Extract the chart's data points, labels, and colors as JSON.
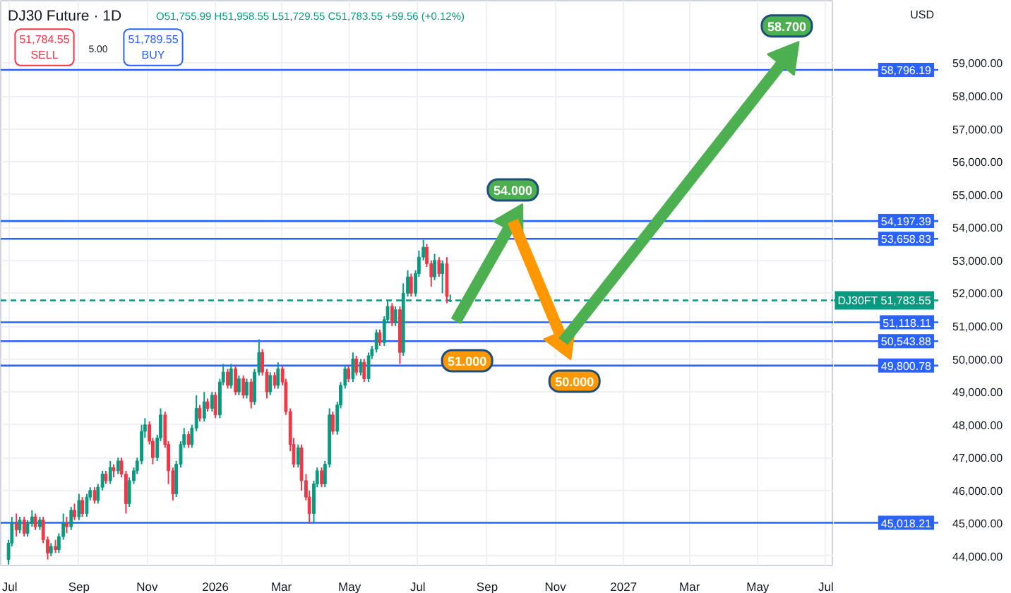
{
  "chart_data": {
    "type": "candlestick",
    "title": "DJ30 Future · 1D",
    "ylabel": "USD",
    "x": [
      "2025-06-30",
      "2025-07-03",
      "2025-07-07",
      "2025-07-10",
      "2025-07-14",
      "2025-07-17",
      "2025-07-21",
      "2025-07-24",
      "2025-07-28",
      "2025-07-31",
      "2025-08-04",
      "2025-08-07",
      "2025-08-11",
      "2025-08-14",
      "2025-08-18",
      "2025-08-21",
      "2025-08-25",
      "2025-08-28",
      "2025-09-01",
      "2025-09-04",
      "2025-09-08",
      "2025-09-11",
      "2025-09-15",
      "2025-09-18",
      "2025-09-22",
      "2025-09-25",
      "2025-09-29",
      "2025-10-02",
      "2025-10-06",
      "2025-10-09",
      "2025-10-13",
      "2025-10-16",
      "2025-10-20",
      "2025-10-23",
      "2025-10-27",
      "2025-10-30",
      "2025-11-03",
      "2025-11-06",
      "2025-11-10",
      "2025-11-13",
      "2025-11-17",
      "2025-11-20",
      "2025-11-24",
      "2025-11-27",
      "2025-12-01",
      "2025-12-04",
      "2025-12-08",
      "2025-12-11",
      "2025-12-15",
      "2025-12-18",
      "2025-12-22",
      "2025-12-25",
      "2025-12-29",
      "2026-01-01",
      "2026-01-05",
      "2026-01-08",
      "2026-01-12",
      "2026-01-15",
      "2026-01-19",
      "2026-01-22",
      "2026-01-26",
      "2026-01-29",
      "2026-02-02",
      "2026-02-05",
      "2026-02-09",
      "2026-02-12",
      "2026-02-16",
      "2026-02-19",
      "2026-02-23",
      "2026-02-26",
      "2026-03-02",
      "2026-03-05",
      "2026-03-09",
      "2026-03-12",
      "2026-03-16",
      "2026-03-19",
      "2026-03-23",
      "2026-03-26",
      "2026-03-30",
      "2026-04-02",
      "2026-04-06",
      "2026-04-09",
      "2026-04-13",
      "2026-04-16",
      "2026-04-20",
      "2026-04-23",
      "2026-04-27",
      "2026-04-30",
      "2026-05-04",
      "2026-05-07",
      "2026-05-11",
      "2026-05-14",
      "2026-05-18",
      "2026-05-21",
      "2026-05-25",
      "2026-05-28",
      "2026-06-01",
      "2026-06-04",
      "2026-06-08",
      "2026-06-11",
      "2026-06-15",
      "2026-06-18",
      "2026-06-22",
      "2026-06-25",
      "2026-06-29",
      "2026-07-02",
      "2026-07-06",
      "2026-07-09",
      "2026-07-13",
      "2026-07-16",
      "2026-07-20",
      "2026-07-23",
      "2026-07-27",
      "2026-07-30"
    ],
    "ohlc": [
      [
        43900,
        44500,
        43750,
        44400
      ],
      [
        44400,
        45200,
        44300,
        45000
      ],
      [
        45000,
        45300,
        44600,
        44800
      ],
      [
        44800,
        45200,
        44700,
        45100
      ],
      [
        45100,
        45200,
        44600,
        44700
      ],
      [
        44700,
        45100,
        44600,
        45000
      ],
      [
        45000,
        45400,
        44900,
        45200
      ],
      [
        45200,
        45300,
        44800,
        44900
      ],
      [
        44900,
        45200,
        44800,
        45100
      ],
      [
        45100,
        45200,
        44400,
        44500
      ],
      [
        44500,
        44600,
        43900,
        44100
      ],
      [
        44100,
        44400,
        44000,
        44300
      ],
      [
        44300,
        44500,
        44100,
        44200
      ],
      [
        44200,
        44700,
        44100,
        44600
      ],
      [
        44600,
        45300,
        44500,
        45000
      ],
      [
        45000,
        45200,
        44700,
        44900
      ],
      [
        44900,
        45500,
        44800,
        45400
      ],
      [
        45400,
        45600,
        45100,
        45200
      ],
      [
        45200,
        45900,
        45100,
        45700
      ],
      [
        45700,
        45800,
        45200,
        45300
      ],
      [
        45300,
        45900,
        45200,
        45800
      ],
      [
        45800,
        46100,
        45700,
        46000
      ],
      [
        46000,
        46100,
        45600,
        45700
      ],
      [
        45700,
        46200,
        45600,
        46100
      ],
      [
        46100,
        46600,
        46000,
        46500
      ],
      [
        46500,
        46600,
        46200,
        46300
      ],
      [
        46300,
        46900,
        46200,
        46700
      ],
      [
        46700,
        46800,
        46400,
        46600
      ],
      [
        46600,
        47000,
        46500,
        46900
      ],
      [
        46900,
        47000,
        46400,
        46500
      ],
      [
        46500,
        46600,
        45300,
        45600
      ],
      [
        45600,
        46400,
        45500,
        46300
      ],
      [
        46300,
        46700,
        46200,
        46600
      ],
      [
        46600,
        47000,
        46500,
        46900
      ],
      [
        46900,
        48000,
        46800,
        47800
      ],
      [
        47800,
        48200,
        47600,
        48000
      ],
      [
        48000,
        48100,
        47400,
        47500
      ],
      [
        47500,
        47600,
        46800,
        47000
      ],
      [
        47000,
        47700,
        46900,
        47600
      ],
      [
        47600,
        48500,
        47500,
        48300
      ],
      [
        48300,
        48400,
        47300,
        47400
      ],
      [
        47400,
        47500,
        46200,
        46600
      ],
      [
        46600,
        46700,
        45700,
        45900
      ],
      [
        45900,
        46900,
        45800,
        46800
      ],
      [
        46800,
        47500,
        46700,
        47400
      ],
      [
        47400,
        47900,
        47300,
        47700
      ],
      [
        47700,
        47800,
        47300,
        47400
      ],
      [
        47400,
        48000,
        47300,
        47900
      ],
      [
        47900,
        48900,
        47800,
        48500
      ],
      [
        48500,
        48600,
        48100,
        48200
      ],
      [
        48200,
        49000,
        48100,
        48700
      ],
      [
        48700,
        48800,
        48400,
        48500
      ],
      [
        48500,
        49000,
        48400,
        48900
      ],
      [
        48900,
        49000,
        48200,
        48300
      ],
      [
        48300,
        49400,
        48200,
        49300
      ],
      [
        49300,
        49850,
        49200,
        49600
      ],
      [
        49600,
        49700,
        49100,
        49200
      ],
      [
        49200,
        49850,
        49100,
        49700
      ],
      [
        49700,
        49800,
        48900,
        49000
      ],
      [
        49000,
        49500,
        48900,
        49400
      ],
      [
        49400,
        49500,
        48800,
        48900
      ],
      [
        48900,
        49400,
        48800,
        49300
      ],
      [
        49300,
        49400,
        48500,
        48700
      ],
      [
        48700,
        49700,
        48600,
        49600
      ],
      [
        49600,
        50600,
        49500,
        50200
      ],
      [
        50200,
        50300,
        49500,
        49600
      ],
      [
        49600,
        49700,
        48800,
        49000
      ],
      [
        49000,
        49600,
        48900,
        49500
      ],
      [
        49500,
        49600,
        49100,
        49200
      ],
      [
        49200,
        49900,
        49100,
        49700
      ],
      [
        49700,
        49800,
        49200,
        49300
      ],
      [
        49300,
        49400,
        48300,
        48400
      ],
      [
        48400,
        48500,
        47200,
        47400
      ],
      [
        47400,
        47600,
        46700,
        46800
      ],
      [
        46800,
        47400,
        46700,
        47300
      ],
      [
        47300,
        47400,
        46000,
        46300
      ],
      [
        46300,
        46500,
        45700,
        45800
      ],
      [
        45800,
        46000,
        45000,
        45300
      ],
      [
        45300,
        46300,
        45050,
        46200
      ],
      [
        46200,
        46700,
        46100,
        46600
      ],
      [
        46600,
        46700,
        46100,
        46200
      ],
      [
        46200,
        46900,
        46100,
        46800
      ],
      [
        46800,
        48500,
        46700,
        48300
      ],
      [
        48300,
        48400,
        47700,
        47800
      ],
      [
        47800,
        48700,
        47700,
        48600
      ],
      [
        48600,
        49300,
        48500,
        49200
      ],
      [
        49200,
        49800,
        49100,
        49700
      ],
      [
        49700,
        49800,
        49300,
        49400
      ],
      [
        49400,
        50200,
        49300,
        50000
      ],
      [
        50000,
        50100,
        49500,
        49600
      ],
      [
        49600,
        50000,
        49500,
        49900
      ],
      [
        49900,
        50000,
        49300,
        49400
      ],
      [
        49400,
        50200,
        49300,
        50100
      ],
      [
        50100,
        50400,
        50000,
        50300
      ],
      [
        50300,
        50900,
        50200,
        50800
      ],
      [
        50800,
        50900,
        50400,
        50500
      ],
      [
        50500,
        51300,
        50400,
        51200
      ],
      [
        51200,
        51800,
        51100,
        51600
      ],
      [
        51600,
        51700,
        51000,
        51100
      ],
      [
        51100,
        51600,
        51000,
        51500
      ],
      [
        51500,
        51600,
        49850,
        50200
      ],
      [
        50200,
        52300,
        50100,
        52000
      ],
      [
        52000,
        52700,
        51900,
        52500
      ],
      [
        52500,
        52600,
        51900,
        52000
      ],
      [
        52000,
        52700,
        51900,
        52600
      ],
      [
        52600,
        53300,
        52500,
        53100
      ],
      [
        53100,
        53620,
        53000,
        53400
      ],
      [
        53400,
        53500,
        52800,
        52900
      ],
      [
        52900,
        53000,
        52200,
        52500
      ],
      [
        52500,
        53200,
        52400,
        53000
      ],
      [
        53000,
        53100,
        52500,
        52600
      ],
      [
        52600,
        53000,
        52000,
        52900
      ],
      [
        52900,
        53100,
        51700,
        51900
      ],
      [
        51755.99,
        51958.55,
        51729.55,
        51783.55
      ]
    ],
    "series": [
      {
        "type": "line",
        "x": [
          "2026-08-04",
          "2026-09-24"
        ],
        "values": [
          51150,
          54200
        ],
        "color": "#4caf50",
        "marker": "triangle"
      },
      {
        "type": "line",
        "x": [
          "2026-09-24",
          "2026-11-08"
        ],
        "values": [
          54200,
          50530
        ],
        "color": "#ff9800",
        "marker": "triangle"
      },
      {
        "type": "line",
        "x": [
          "2026-11-08",
          "2027-05-27"
        ],
        "values": [
          50530,
          59190
        ],
        "color": "#4caf50",
        "marker": "triangle"
      }
    ],
    "xlim": [
      "2025-06-23",
      "2027-07-08"
    ],
    "xticks": [
      {
        "value": "2025-07-01",
        "label": "Jul"
      },
      {
        "value": "2025-09-01",
        "label": "Sep"
      },
      {
        "value": "2025-11-01",
        "label": "Nov"
      },
      {
        "value": "2026-01-01",
        "label": "2026"
      },
      {
        "value": "2026-03-01",
        "label": "Mar"
      },
      {
        "value": "2026-05-01",
        "label": "May"
      },
      {
        "value": "2026-07-01",
        "label": "Jul"
      },
      {
        "value": "2026-09-01",
        "label": "Sep"
      },
      {
        "value": "2026-11-01",
        "label": "Nov"
      },
      {
        "value": "2027-01-01",
        "label": "2027"
      },
      {
        "value": "2027-03-01",
        "label": "Mar"
      },
      {
        "value": "2027-05-01",
        "label": "May"
      },
      {
        "value": "2027-07-01",
        "label": "Jul"
      }
    ],
    "ylim": [
      43720,
      60900
    ],
    "yticks": [
      {
        "value": 44000,
        "label": "44,000.00"
      },
      {
        "value": 45000,
        "label": "45,000.00"
      },
      {
        "value": 46000,
        "label": "46,000.00"
      },
      {
        "value": 47000,
        "label": "47,000.00"
      },
      {
        "value": 48000,
        "label": "48,000.00"
      },
      {
        "value": 49000,
        "label": "49,000.00"
      },
      {
        "value": 50000,
        "label": "50,000.00"
      },
      {
        "value": 51000,
        "label": "51,000.00"
      },
      {
        "value": 52000,
        "label": "52,000.00"
      },
      {
        "value": 53000,
        "label": "53,000.00"
      },
      {
        "value": 54000,
        "label": "54,000.00"
      },
      {
        "value": 55000,
        "label": "55,000.00"
      },
      {
        "value": 56000,
        "label": "56,000.00"
      },
      {
        "value": 57000,
        "label": "57,000.00"
      },
      {
        "value": 58000,
        "label": "58,000.00"
      },
      {
        "value": 59000,
        "label": "59,000.00"
      }
    ],
    "ref_lines": [
      {
        "axis": "y",
        "value": 58796.19,
        "label": "58,796.19",
        "color": "#2962ff"
      },
      {
        "axis": "y",
        "value": 54197.39,
        "label": "54,197.39",
        "color": "#2962ff"
      },
      {
        "axis": "y",
        "value": 53658.83,
        "label": "53,658.83",
        "color": "#2962ff"
      },
      {
        "axis": "y",
        "value": 51783.55,
        "label": "DJ30FT 51,783.55",
        "color": "#089981",
        "line_style": "dashed"
      },
      {
        "axis": "y",
        "value": 51118.11,
        "label": "51,118.11",
        "color": "#2962ff"
      },
      {
        "axis": "y",
        "value": 50543.88,
        "label": "50,543.88",
        "color": "#2962ff"
      },
      {
        "axis": "y",
        "value": 49800.78,
        "label": "49,800.78",
        "color": "#2962ff"
      },
      {
        "axis": "y",
        "value": 45018.21,
        "label": "45,018.21",
        "color": "#2962ff"
      }
    ],
    "annotations": [
      "O51,755.99 H51,958.55 L51,729.55 C51,783.55 +59.56 (+0.12%)",
      "51,784.55",
      "SELL",
      "5.00",
      "51,789.55",
      "BUY",
      {
        "text": "51.000",
        "x": "2026-08-04",
        "y": 51150
      },
      {
        "text": "54.000",
        "x": "2026-09-24",
        "y": 54200
      },
      {
        "text": "50.000",
        "x": "2026-11-08",
        "y": 50530
      },
      {
        "text": "58.700",
        "x": "2027-05-27",
        "y": 59190
      }
    ],
    "grid": true
  }
}
